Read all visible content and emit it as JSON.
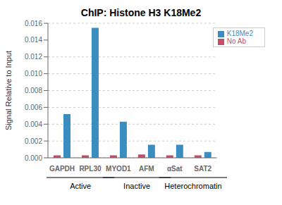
{
  "chart_data": {
    "type": "bar",
    "title": "ChIP: Histone H3 K18Me2",
    "ylabel": "Signal Relative to Input",
    "categories": [
      "GAPDH",
      "RPL30",
      "MYOD1",
      "AFM",
      "αSat",
      "SAT2"
    ],
    "groups": [
      {
        "label": "Active",
        "span": [
          0,
          1
        ]
      },
      {
        "label": "Inactive",
        "span": [
          2,
          3
        ]
      },
      {
        "label": "Heterochromatin",
        "span": [
          4,
          5
        ]
      }
    ],
    "series": [
      {
        "name": "No Ab",
        "color": "#c0506a",
        "values": [
          0.0003,
          0.0003,
          0.0003,
          0.0004,
          0.0003,
          0.0003
        ]
      },
      {
        "name": "K18Me2",
        "color": "#3b8dc0",
        "values": [
          0.0052,
          0.01545,
          0.0043,
          0.00155,
          0.00155,
          0.0007
        ]
      }
    ],
    "ylim": [
      0,
      0.016
    ],
    "yticks": [
      {
        "value": 0,
        "label": "0.000"
      },
      {
        "value": 0.002,
        "label": "0.002"
      },
      {
        "value": 0.004,
        "label": "0.004"
      },
      {
        "value": 0.006,
        "label": "0.006"
      },
      {
        "value": 0.008,
        "label": "0.008"
      },
      {
        "value": 0.01,
        "label": "0.010"
      },
      {
        "value": 0.012,
        "label": "0.012"
      },
      {
        "value": 0.014,
        "label": "0.014"
      },
      {
        "value": 0.016,
        "label": "0.016"
      }
    ],
    "grid": true,
    "legend": "upper right"
  }
}
